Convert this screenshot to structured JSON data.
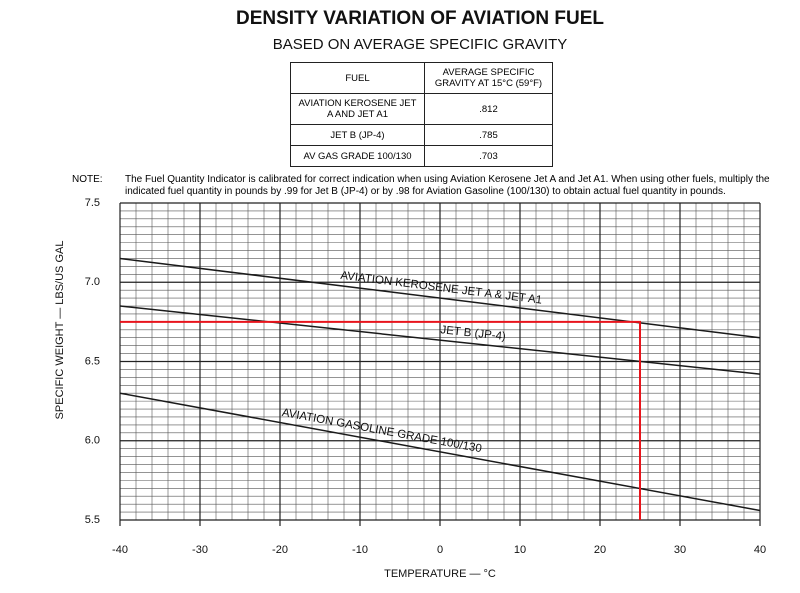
{
  "chart_data": {
    "type": "line",
    "title": "DENSITY VARIATION OF AVIATION FUEL",
    "subtitle": "BASED ON AVERAGE SPECIFIC GRAVITY",
    "xlabel": "TEMPERATURE — °C",
    "ylabel": "SPECIFIC WEIGHT — LBS/US GAL",
    "xlim": [
      -40,
      40
    ],
    "ylim": [
      5.5,
      7.5
    ],
    "xticks": [
      -40,
      -30,
      -20,
      -10,
      0,
      10,
      20,
      30,
      40
    ],
    "yticks": [
      7.5,
      {
        "value": 7,
        "label": "7.0"
      },
      6.5,
      {
        "value": 6,
        "label": "6.0"
      },
      5.5
    ],
    "grid": true,
    "minor_grid": {
      "x_step": 2,
      "y_step": 0.05
    },
    "series": [
      {
        "name": "AVIATION KEROSENE JET A & JET A1",
        "color": "#1a1a1a",
        "x": [
          -40,
          40
        ],
        "values": [
          7.15,
          6.65
        ]
      },
      {
        "name": "JET B (JP-4)",
        "color": "#1a1a1a",
        "x": [
          -40,
          40
        ],
        "values": [
          6.85,
          6.42
        ]
      },
      {
        "name": "AVIATION GASOLINE GRADE 100/130",
        "color": "#1a1a1a",
        "x": [
          -40,
          40
        ],
        "values": [
          6.3,
          5.56
        ]
      },
      {
        "color": "#e8141c",
        "x": [
          -40,
          25,
          25
        ],
        "values": [
          6.75,
          6.75,
          5.5
        ]
      }
    ]
  },
  "table": {
    "header": [
      "FUEL",
      "AVERAGE SPECIFIC GRAVITY AT 15°C (59°F)"
    ],
    "rows": [
      [
        "AVIATION KEROSENE JET A AND JET A1",
        ".812"
      ],
      [
        "JET B (JP-4)",
        ".785"
      ],
      [
        "AV GAS GRADE 100/130",
        ".703"
      ]
    ]
  },
  "note": {
    "label": "NOTE:",
    "text": "The Fuel Quantity Indicator is calibrated for correct indication when using Aviation Kerosene Jet A and Jet A1. When using other fuels, multiply the indicated fuel quantity in pounds by .99 for Jet B (JP-4) or by .98 for Aviation Gasoline (100/130) to obtain actual fuel quantity in pounds."
  }
}
